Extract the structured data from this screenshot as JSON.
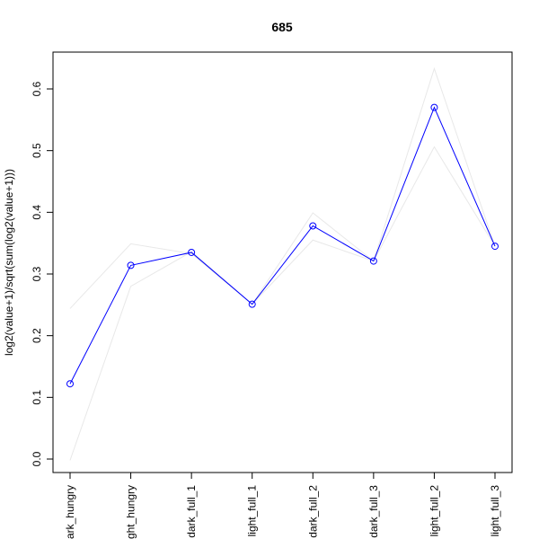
{
  "chart_data": {
    "type": "line",
    "title": "685",
    "xlabel": "",
    "ylabel": "log2(value+1)/sqrt(sum(log2(value+1)))",
    "categories": [
      "dark_hungry",
      "light_hungry",
      "dark_full_1",
      "light_full_1",
      "dark_full_2",
      "dark_full_3",
      "light_full_2",
      "light_full_3"
    ],
    "category_labels_visible": [
      "ark_hungry",
      "ght_hungry",
      "dark_full_1",
      "light_full_1",
      "dark_full_2",
      "dark_full_3",
      "light_full_2",
      "light_full_3"
    ],
    "ylim": [
      -0.02,
      0.65
    ],
    "yticks": [
      0.0,
      0.1,
      0.2,
      0.3,
      0.4,
      0.5,
      0.6
    ],
    "ytick_labels": [
      "0.0",
      "0.1",
      "0.2",
      "0.3",
      "0.4",
      "0.5",
      "0.6"
    ],
    "grid": false,
    "series": [
      {
        "values": [
          0.122,
          0.314,
          0.335,
          0.251,
          0.378,
          0.321,
          0.57,
          0.345
        ],
        "color": "#0000ff",
        "markers": "open-circle"
      },
      {
        "values": [
          0.244,
          0.349,
          0.333,
          0.251,
          0.399,
          0.321,
          0.633,
          0.345
        ],
        "color": "#e8e8e8",
        "markers": "none"
      },
      {
        "values": [
          -0.002,
          0.28,
          0.336,
          0.251,
          0.355,
          0.321,
          0.506,
          0.345
        ],
        "color": "#e8e8e8",
        "markers": "none"
      }
    ]
  }
}
